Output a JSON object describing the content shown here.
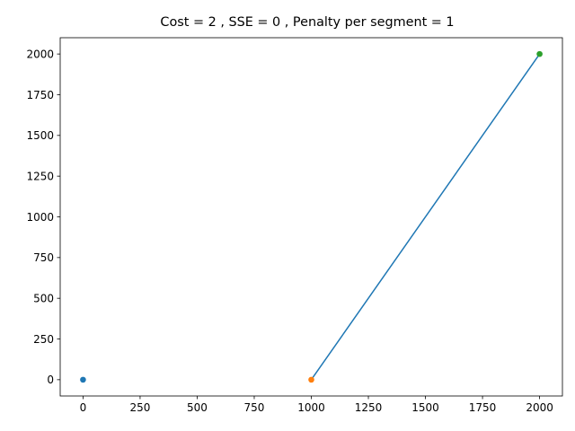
{
  "chart_data": {
    "type": "scatter",
    "title": "Cost = 2 , SSE = 0 , Penalty per segment = 1",
    "xlabel": "",
    "ylabel": "",
    "xlim": [
      -100,
      2100
    ],
    "ylim": [
      -100,
      2100
    ],
    "grid": false,
    "xticks": [
      0,
      250,
      500,
      750,
      1000,
      1250,
      1500,
      1750,
      2000
    ],
    "yticks": [
      0,
      250,
      500,
      750,
      1000,
      1250,
      1500,
      1750,
      2000
    ],
    "points": [
      {
        "x": 0,
        "y": 0,
        "color": "#1f77b4"
      },
      {
        "x": 1000,
        "y": 0,
        "color": "#ff7f0e"
      },
      {
        "x": 2000,
        "y": 2000,
        "color": "#2ca02c"
      }
    ],
    "lines": [
      {
        "x": [
          1000,
          2000
        ],
        "y": [
          0,
          2000
        ],
        "color": "#1f77b4"
      }
    ]
  }
}
